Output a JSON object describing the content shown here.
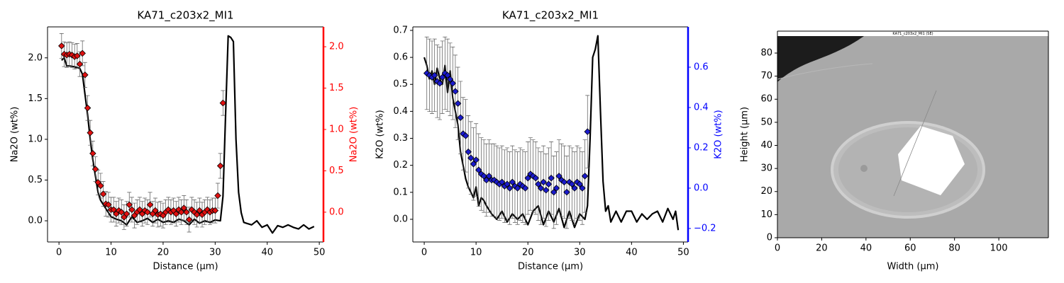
{
  "chart_data": [
    {
      "type": "line",
      "title": "KA71_c203x2_MI1",
      "xlabel": "Distance (µm)",
      "ylabel": "Na2O (wt%)",
      "y2label": "Na2O (wt%)",
      "xlim": [
        -2.2,
        50.8
      ],
      "xticks": [
        0,
        10,
        20,
        30,
        40,
        50
      ],
      "ylim": [
        -0.26,
        2.38
      ],
      "yticks": [
        {
          "value": 0,
          "label": "0.0"
        },
        0.5,
        {
          "value": 1,
          "label": "1.0"
        },
        1.5,
        {
          "value": 2,
          "label": "2.0"
        }
      ],
      "y2lim": [
        -0.36,
        2.24
      ],
      "y2ticks": [
        {
          "value": 0,
          "label": "0.0"
        },
        0.5,
        {
          "value": 1,
          "label": "1.0"
        },
        1.5,
        {
          "value": 2,
          "label": "2.0"
        }
      ],
      "y2color": "#ff0000",
      "series": [
        {
          "color": "#000000",
          "x": [
            0.5,
            1,
            1.5,
            2,
            3,
            4,
            4.5,
            5,
            5.5,
            6,
            6.5,
            7,
            7.5,
            8,
            9,
            10,
            11,
            12,
            13,
            14,
            15,
            16,
            17,
            18,
            19,
            20,
            21,
            22,
            23,
            24,
            25,
            26,
            27,
            28,
            29,
            30,
            31,
            31.5,
            32,
            32.5,
            33,
            33.5,
            34,
            34.5,
            35,
            35.5,
            36,
            37,
            38,
            39,
            40,
            41,
            42,
            43,
            44,
            45,
            46,
            47,
            48,
            49
          ],
          "values": [
            1.97,
            2.0,
            1.9,
            1.9,
            1.89,
            1.87,
            1.8,
            1.55,
            1.3,
            1.0,
            0.75,
            0.55,
            0.35,
            0.25,
            0.15,
            0.05,
            0.02,
            0.0,
            -0.05,
            0.05,
            -0.02,
            0.0,
            0.03,
            -0.02,
            0.02,
            -0.02,
            0.0,
            -0.02,
            0.02,
            0.0,
            -0.05,
            0.02,
            -0.03,
            0.0,
            -0.02,
            0.01,
            0.0,
            0.3,
            1.3,
            2.27,
            2.25,
            2.2,
            1.0,
            0.35,
            0.1,
            -0.02,
            -0.03,
            -0.05,
            0.0,
            -0.08,
            -0.05,
            -0.15,
            -0.06,
            -0.08,
            -0.05,
            -0.08,
            -0.1,
            -0.05,
            -0.1,
            -0.07
          ]
        },
        {
          "color": "#e01010",
          "axis": "y2",
          "marker": "diamond",
          "x": [
            0.5,
            1,
            1.5,
            2,
            2.5,
            3,
            3.5,
            4,
            4.5,
            5,
            5.5,
            6,
            6.5,
            7,
            7.5,
            8,
            8.5,
            9,
            9.5,
            10,
            10.5,
            11,
            11.5,
            12,
            12.5,
            13,
            13.5,
            14,
            14.5,
            15,
            15.5,
            16,
            16.5,
            17,
            17.5,
            18,
            18.5,
            19,
            19.5,
            20,
            20.5,
            21,
            21.5,
            22,
            22.5,
            23,
            23.5,
            24,
            24.5,
            25,
            25.5,
            26,
            26.5,
            27,
            27.5,
            28,
            28.5,
            29,
            29.5,
            30,
            30.5,
            31,
            31.5
          ],
          "values": [
            2.01,
            1.91,
            1.9,
            1.91,
            1.9,
            1.88,
            1.89,
            1.79,
            1.92,
            1.66,
            1.26,
            0.96,
            0.71,
            0.52,
            0.36,
            0.32,
            0.22,
            0.1,
            0.09,
            0.03,
            0.03,
            -0.02,
            0.02,
            0.0,
            -0.06,
            -0.02,
            0.09,
            0.03,
            -0.04,
            0.0,
            0.03,
            -0.02,
            0.02,
            0.0,
            0.09,
            -0.02,
            0.02,
            -0.03,
            -0.02,
            -0.04,
            0.0,
            0.03,
            0.0,
            0.02,
            -0.02,
            0.03,
            0.0,
            0.05,
            0.0,
            -0.09,
            0.03,
            0.0,
            -0.03,
            0.02,
            -0.03,
            0.0,
            0.03,
            0.0,
            0.02,
            0.02,
            0.2,
            0.56,
            1.32
          ],
          "errors": [
            0.15,
            0.15,
            0.15,
            0.15,
            0.15,
            0.15,
            0.15,
            0.15,
            0.15,
            0.15,
            0.15,
            0.15,
            0.15,
            0.15,
            0.15,
            0.15,
            0.15,
            0.15,
            0.15,
            0.15,
            0.15,
            0.15,
            0.15,
            0.15,
            0.15,
            0.15,
            0.15,
            0.15,
            0.15,
            0.15,
            0.15,
            0.15,
            0.15,
            0.15,
            0.15,
            0.15,
            0.15,
            0.15,
            0.15,
            0.15,
            0.15,
            0.15,
            0.15,
            0.15,
            0.15,
            0.15,
            0.15,
            0.15,
            0.15,
            0.15,
            0.15,
            0.15,
            0.15,
            0.15,
            0.15,
            0.15,
            0.15,
            0.15,
            0.15,
            0.15,
            0.15,
            0.15,
            0.15
          ]
        }
      ]
    },
    {
      "type": "line",
      "title": "KA71_c203x2_MI1",
      "xlabel": "Distance (µm)",
      "ylabel": "K2O (wt%)",
      "y2label": "K2O (wt%)",
      "xlim": [
        -2.2,
        50.9
      ],
      "xticks": [
        0,
        10,
        20,
        30,
        40,
        50
      ],
      "ylim": [
        -0.084,
        0.713
      ],
      "yticks": [
        {
          "value": 0,
          "label": "0.0"
        },
        0.1,
        0.2,
        0.3,
        0.4,
        0.5,
        0.6,
        0.7
      ],
      "y2lim": [
        -0.267,
        0.8
      ],
      "y2ticks": [
        {
          "value": -0.2,
          "label": "−0.2"
        },
        {
          "value": 0,
          "label": "0.0"
        },
        0.2,
        0.4,
        0.6
      ],
      "y2color": "#0000ff",
      "series": [
        {
          "color": "#000000",
          "x": [
            0,
            0.5,
            1,
            1.5,
            2,
            2.5,
            3,
            3.5,
            4,
            4.5,
            5,
            5.5,
            6,
            6.5,
            7,
            7.5,
            8,
            8.5,
            9,
            9.5,
            10,
            10.5,
            11,
            11.5,
            12,
            13,
            14,
            15,
            16,
            17,
            18,
            19,
            20,
            21,
            22,
            23,
            24,
            25,
            26,
            27,
            28,
            29,
            30,
            31,
            31.5,
            32,
            32.5,
            33,
            33.5,
            34,
            34.5,
            35,
            35.5,
            36,
            37,
            38,
            39,
            40,
            41,
            42,
            43,
            44,
            45,
            46,
            47,
            48,
            48.5,
            49
          ],
          "values": [
            0.6,
            0.57,
            0.52,
            0.55,
            0.5,
            0.56,
            0.52,
            0.5,
            0.57,
            0.47,
            0.55,
            0.45,
            0.4,
            0.35,
            0.25,
            0.2,
            0.15,
            0.12,
            0.1,
            0.08,
            0.12,
            0.05,
            0.08,
            0.07,
            0.05,
            0.02,
            0.0,
            0.03,
            -0.01,
            0.02,
            0.0,
            0.02,
            -0.02,
            0.03,
            0.05,
            -0.02,
            0.03,
            -0.01,
            0.04,
            -0.03,
            0.03,
            -0.03,
            0.02,
            0.0,
            0.05,
            0.3,
            0.6,
            0.63,
            0.68,
            0.4,
            0.14,
            0.03,
            0.05,
            -0.01,
            0.03,
            -0.01,
            0.03,
            0.03,
            -0.01,
            0.02,
            0.0,
            0.02,
            0.03,
            -0.01,
            0.04,
            0.0,
            0.03,
            -0.04
          ]
        },
        {
          "color": "#1a1acc",
          "axis": "y2",
          "marker": "diamond",
          "x": [
            0.5,
            1,
            1.5,
            2,
            2.5,
            3,
            3.5,
            4,
            4.5,
            5,
            5.5,
            6,
            6.5,
            7,
            7.5,
            8,
            8.5,
            9,
            9.5,
            10,
            10.5,
            11,
            11.5,
            12,
            12.5,
            13,
            13.5,
            14,
            14.5,
            15,
            15.5,
            16,
            16.5,
            17,
            17.5,
            18,
            18.5,
            19,
            19.5,
            20,
            20.5,
            21,
            21.5,
            22,
            22.5,
            23,
            23.5,
            24,
            24.5,
            25,
            25.5,
            26,
            26.5,
            27,
            27.5,
            28,
            28.5,
            29,
            29.5,
            30,
            30.5,
            31,
            31.5
          ],
          "values": [
            0.57,
            0.56,
            0.55,
            0.56,
            0.53,
            0.52,
            0.55,
            0.57,
            0.56,
            0.54,
            0.52,
            0.48,
            0.42,
            0.35,
            0.27,
            0.26,
            0.18,
            0.15,
            0.12,
            0.14,
            0.09,
            0.07,
            0.06,
            0.04,
            0.06,
            0.04,
            0.04,
            0.03,
            0.02,
            0.03,
            0.01,
            0.02,
            0.0,
            0.03,
            0.01,
            0.0,
            0.02,
            0.01,
            0.0,
            0.05,
            0.07,
            0.06,
            0.05,
            0.02,
            0.0,
            0.03,
            -0.01,
            0.02,
            0.05,
            -0.02,
            0.0,
            0.06,
            0.04,
            0.03,
            -0.02,
            0.03,
            0.02,
            0.0,
            0.03,
            0.02,
            0.0,
            0.06,
            0.28
          ],
          "errors": [
            0.18,
            0.18,
            0.18,
            0.18,
            0.18,
            0.18,
            0.18,
            0.18,
            0.18,
            0.18,
            0.18,
            0.18,
            0.18,
            0.18,
            0.18,
            0.18,
            0.18,
            0.18,
            0.18,
            0.18,
            0.18,
            0.18,
            0.18,
            0.18,
            0.18,
            0.18,
            0.18,
            0.18,
            0.18,
            0.18,
            0.18,
            0.18,
            0.18,
            0.18,
            0.18,
            0.18,
            0.18,
            0.18,
            0.18,
            0.18,
            0.18,
            0.18,
            0.18,
            0.18,
            0.18,
            0.18,
            0.18,
            0.18,
            0.18,
            0.18,
            0.18,
            0.18,
            0.18,
            0.18,
            0.18,
            0.18,
            0.18,
            0.18,
            0.18,
            0.18,
            0.18,
            0.18,
            0.18
          ]
        }
      ]
    },
    {
      "type": "image",
      "xlabel": "Width (µm)",
      "ylabel": "Height (µm)",
      "image_title": "KA71_c203x2_MI1 (SE)",
      "xlim": [
        0,
        122.4
      ],
      "xticks": [
        0,
        20,
        40,
        60,
        80,
        100
      ],
      "ylim": [
        0,
        89.5
      ],
      "yticks": [
        0,
        10,
        20,
        30,
        40,
        50,
        60,
        70,
        80
      ]
    }
  ]
}
